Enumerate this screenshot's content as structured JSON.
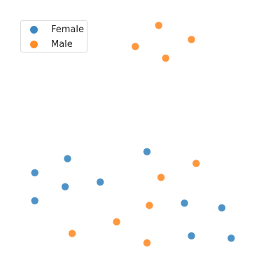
{
  "chart_data": {
    "type": "scatter",
    "title": "",
    "xlabel": "",
    "ylabel": "",
    "grid": false,
    "axes_visible": false,
    "xlim": [
      0,
      100
    ],
    "ylim": [
      0,
      100
    ],
    "legend": {
      "placement": "top-left"
    },
    "series": [
      {
        "name": "Female",
        "color": "#3b87c2",
        "points": [
          {
            "x": 5,
            "y": 36
          },
          {
            "x": 19,
            "y": 42
          },
          {
            "x": 5,
            "y": 24
          },
          {
            "x": 18,
            "y": 30
          },
          {
            "x": 33,
            "y": 32
          },
          {
            "x": 53,
            "y": 45
          },
          {
            "x": 69,
            "y": 23
          },
          {
            "x": 85,
            "y": 21
          },
          {
            "x": 72,
            "y": 9
          },
          {
            "x": 89,
            "y": 8
          }
        ]
      },
      {
        "name": "Male",
        "color": "#ff8c2a",
        "points": [
          {
            "x": 58,
            "y": 99
          },
          {
            "x": 48,
            "y": 90
          },
          {
            "x": 72,
            "y": 93
          },
          {
            "x": 61,
            "y": 85
          },
          {
            "x": 74,
            "y": 40
          },
          {
            "x": 59,
            "y": 34
          },
          {
            "x": 54,
            "y": 22
          },
          {
            "x": 40,
            "y": 15
          },
          {
            "x": 21,
            "y": 10
          },
          {
            "x": 53,
            "y": 6
          }
        ]
      }
    ]
  }
}
